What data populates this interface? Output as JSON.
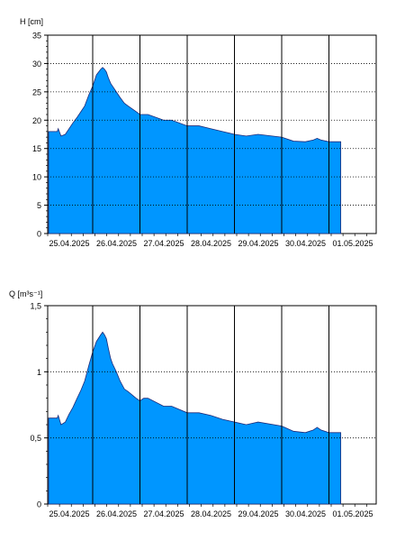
{
  "colors": {
    "fill": "#0096ff",
    "edge": "#1e2a78",
    "grid": "#000000",
    "background": "#ffffff"
  },
  "chart_data": [
    {
      "type": "area",
      "ylabel": "H [cm]",
      "ylim": [
        0,
        35
      ],
      "y_ticks": [
        "0",
        "5",
        "10",
        "15",
        "20",
        "25",
        "30",
        "35"
      ],
      "x_tick_labels": [
        "25.04.2025",
        "26.04.2025",
        "27.04.2025",
        "28.04.2025",
        "29.04.2025",
        "30.04.2025",
        "01.05.2025"
      ],
      "grid": true,
      "x": [
        0,
        0.25,
        0.27,
        0.33,
        0.42,
        0.5,
        0.58,
        0.67,
        0.75,
        0.83,
        0.92,
        1.0,
        1.08,
        1.17,
        1.21,
        1.25,
        1.29,
        1.33,
        1.38,
        1.42,
        1.5,
        1.58,
        1.67,
        1.75,
        1.92,
        2.0,
        2.08,
        2.17,
        2.5,
        2.67,
        3.0,
        3.25,
        3.5,
        3.75,
        4.0,
        4.25,
        4.5,
        5.0,
        5.25,
        5.5,
        5.67,
        5.75,
        5.83,
        6.0,
        6.25
      ],
      "values": [
        18,
        18,
        18.5,
        17.2,
        17.5,
        18.5,
        19.5,
        20.5,
        21.5,
        22.5,
        24.5,
        26,
        28,
        29,
        29.3,
        29,
        28.5,
        27.5,
        26.5,
        26,
        25,
        24,
        23,
        22.5,
        21.5,
        21,
        21,
        21,
        20,
        20,
        19,
        19,
        18.5,
        18,
        17.5,
        17.2,
        17.5,
        17,
        16.3,
        16.2,
        16.5,
        16.8,
        16.5,
        16.2,
        16.2
      ]
    },
    {
      "type": "area",
      "ylabel": "Q [m³s⁻¹]",
      "ylim": [
        0,
        1.5
      ],
      "y_ticks": [
        "0",
        "0,5",
        "1",
        "1,5"
      ],
      "x_tick_labels": [
        "25.04.2025",
        "26.04.2025",
        "27.04.2025",
        "28.04.2025",
        "29.04.2025",
        "30.04.2025",
        "01.05.2025"
      ],
      "grid": true,
      "x": [
        0,
        0.25,
        0.27,
        0.33,
        0.42,
        0.5,
        0.58,
        0.67,
        0.75,
        0.83,
        0.92,
        1.0,
        1.08,
        1.17,
        1.21,
        1.25,
        1.29,
        1.33,
        1.38,
        1.42,
        1.5,
        1.58,
        1.67,
        1.75,
        1.92,
        2.0,
        2.08,
        2.17,
        2.5,
        2.67,
        3.0,
        3.25,
        3.5,
        3.75,
        4.0,
        4.25,
        4.5,
        5.0,
        5.25,
        5.5,
        5.67,
        5.75,
        5.83,
        6.0,
        6.25
      ],
      "values": [
        0.65,
        0.65,
        0.67,
        0.6,
        0.62,
        0.68,
        0.73,
        0.8,
        0.86,
        0.93,
        1.05,
        1.15,
        1.23,
        1.28,
        1.3,
        1.28,
        1.25,
        1.18,
        1.1,
        1.06,
        1.0,
        0.93,
        0.87,
        0.85,
        0.8,
        0.78,
        0.8,
        0.8,
        0.74,
        0.74,
        0.69,
        0.69,
        0.67,
        0.64,
        0.62,
        0.6,
        0.62,
        0.59,
        0.55,
        0.54,
        0.56,
        0.58,
        0.56,
        0.54,
        0.54
      ]
    }
  ]
}
